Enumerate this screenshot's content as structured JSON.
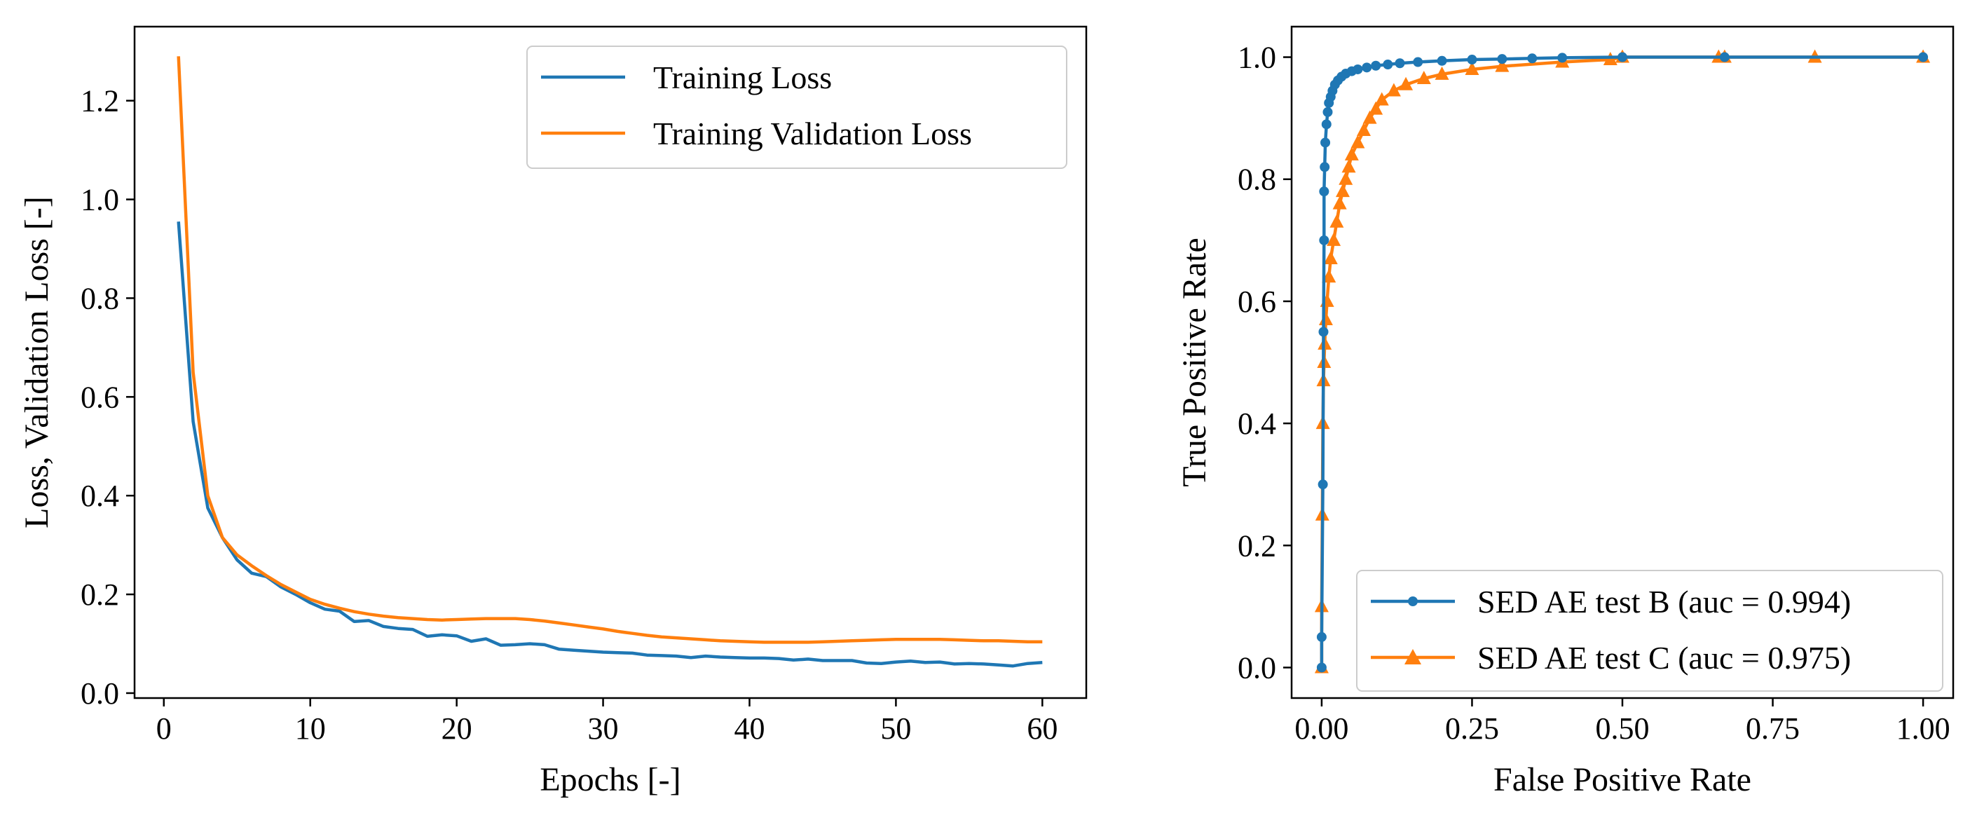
{
  "chart_data": [
    {
      "type": "line",
      "title": "",
      "xlabel": "Epochs [-]",
      "ylabel": "Loss, Validation Loss [-]",
      "xlim": [
        -2.0,
        63.0
      ],
      "ylim": [
        -0.01,
        1.35
      ],
      "xticks": [
        0,
        10,
        20,
        30,
        40,
        50,
        60
      ],
      "xtick_labels": [
        "0",
        "10",
        "20",
        "30",
        "40",
        "50",
        "60"
      ],
      "yticks": [
        0.0,
        0.2,
        0.4,
        0.6,
        0.8,
        1.0,
        1.2
      ],
      "ytick_labels": [
        "0.0",
        "0.2",
        "0.4",
        "0.6",
        "0.8",
        "1.0",
        "1.2"
      ],
      "legend_position": "top-right",
      "series": [
        {
          "name": "Training Loss",
          "color": "#1f77b4",
          "x": [
            1,
            2,
            3,
            4,
            5,
            6,
            7,
            8,
            9,
            10,
            11,
            12,
            13,
            14,
            15,
            16,
            17,
            18,
            19,
            20,
            21,
            22,
            23,
            24,
            25,
            26,
            27,
            28,
            29,
            30,
            31,
            32,
            33,
            34,
            35,
            36,
            37,
            38,
            39,
            40,
            41,
            42,
            43,
            44,
            45,
            46,
            47,
            48,
            49,
            50,
            51,
            52,
            53,
            54,
            55,
            56,
            57,
            58,
            59,
            60
          ],
          "values": [
            0.955,
            0.55,
            0.375,
            0.315,
            0.27,
            0.243,
            0.236,
            0.215,
            0.2,
            0.183,
            0.17,
            0.166,
            0.145,
            0.147,
            0.135,
            0.131,
            0.129,
            0.115,
            0.118,
            0.116,
            0.105,
            0.11,
            0.097,
            0.098,
            0.1,
            0.098,
            0.089,
            0.087,
            0.085,
            0.083,
            0.082,
            0.081,
            0.077,
            0.076,
            0.075,
            0.072,
            0.075,
            0.073,
            0.072,
            0.071,
            0.071,
            0.07,
            0.067,
            0.069,
            0.066,
            0.066,
            0.066,
            0.061,
            0.06,
            0.063,
            0.065,
            0.062,
            0.063,
            0.059,
            0.06,
            0.059,
            0.057,
            0.055,
            0.06,
            0.062
          ]
        },
        {
          "name": "Training Validation Loss",
          "color": "#ff7f0e",
          "x": [
            1,
            2,
            3,
            4,
            5,
            6,
            7,
            8,
            9,
            10,
            11,
            12,
            13,
            14,
            15,
            16,
            17,
            18,
            19,
            20,
            21,
            22,
            23,
            24,
            25,
            26,
            27,
            28,
            29,
            30,
            31,
            32,
            33,
            34,
            35,
            36,
            37,
            38,
            39,
            40,
            41,
            42,
            43,
            44,
            45,
            46,
            47,
            48,
            49,
            50,
            51,
            52,
            53,
            54,
            55,
            56,
            57,
            58,
            59,
            60
          ],
          "values": [
            1.29,
            0.65,
            0.4,
            0.315,
            0.28,
            0.258,
            0.238,
            0.22,
            0.205,
            0.19,
            0.18,
            0.172,
            0.165,
            0.16,
            0.156,
            0.153,
            0.151,
            0.149,
            0.148,
            0.149,
            0.15,
            0.151,
            0.151,
            0.151,
            0.149,
            0.146,
            0.142,
            0.138,
            0.134,
            0.13,
            0.125,
            0.121,
            0.117,
            0.114,
            0.112,
            0.11,
            0.108,
            0.106,
            0.105,
            0.104,
            0.103,
            0.103,
            0.103,
            0.103,
            0.104,
            0.105,
            0.106,
            0.107,
            0.108,
            0.109,
            0.109,
            0.109,
            0.109,
            0.108,
            0.107,
            0.106,
            0.106,
            0.105,
            0.104,
            0.104
          ]
        }
      ]
    },
    {
      "type": "line",
      "title": "",
      "xlabel": "False Positive Rate",
      "ylabel": "True Positive Rate",
      "xlim": [
        -0.05,
        1.05
      ],
      "ylim": [
        -0.05,
        1.05
      ],
      "xticks": [
        0.0,
        0.25,
        0.5,
        0.75,
        1.0
      ],
      "xtick_labels": [
        "0.00",
        "0.25",
        "0.50",
        "0.75",
        "1.00"
      ],
      "yticks": [
        0.0,
        0.2,
        0.4,
        0.6,
        0.8,
        1.0
      ],
      "ytick_labels": [
        "0.0",
        "0.2",
        "0.4",
        "0.6",
        "0.8",
        "1.0"
      ],
      "legend_position": "lower-right",
      "series": [
        {
          "name": "SED AE test B (auc = 0.994)",
          "color": "#1f77b4",
          "marker": "circle",
          "x": [
            0.0,
            0.0,
            0.002,
            0.003,
            0.004,
            0.004,
            0.005,
            0.006,
            0.008,
            0.01,
            0.012,
            0.015,
            0.018,
            0.022,
            0.027,
            0.033,
            0.04,
            0.05,
            0.06,
            0.075,
            0.09,
            0.11,
            0.13,
            0.16,
            0.2,
            0.25,
            0.3,
            0.35,
            0.4,
            0.5,
            0.67,
            1.0
          ],
          "values": [
            0.0,
            0.05,
            0.3,
            0.55,
            0.7,
            0.78,
            0.82,
            0.86,
            0.89,
            0.91,
            0.925,
            0.935,
            0.945,
            0.955,
            0.962,
            0.968,
            0.973,
            0.977,
            0.98,
            0.983,
            0.986,
            0.988,
            0.99,
            0.992,
            0.994,
            0.996,
            0.997,
            0.998,
            0.999,
            1.0,
            1.0,
            1.0
          ]
        },
        {
          "name": "SED AE test C (auc = 0.975)",
          "color": "#ff7f0e",
          "marker": "triangle",
          "x": [
            0.0,
            0.0,
            0.001,
            0.002,
            0.003,
            0.004,
            0.005,
            0.007,
            0.009,
            0.012,
            0.015,
            0.02,
            0.025,
            0.03,
            0.035,
            0.04,
            0.045,
            0.05,
            0.06,
            0.07,
            0.08,
            0.09,
            0.1,
            0.12,
            0.14,
            0.17,
            0.2,
            0.25,
            0.3,
            0.4,
            0.48,
            0.5,
            0.66,
            0.67,
            0.82,
            1.0
          ],
          "values": [
            0.0,
            0.1,
            0.25,
            0.4,
            0.47,
            0.5,
            0.53,
            0.57,
            0.6,
            0.64,
            0.67,
            0.7,
            0.73,
            0.76,
            0.78,
            0.8,
            0.82,
            0.84,
            0.86,
            0.88,
            0.9,
            0.915,
            0.93,
            0.945,
            0.955,
            0.965,
            0.972,
            0.98,
            0.985,
            0.992,
            0.996,
            1.0,
            1.0,
            1.0,
            1.0,
            1.0
          ]
        }
      ]
    }
  ]
}
